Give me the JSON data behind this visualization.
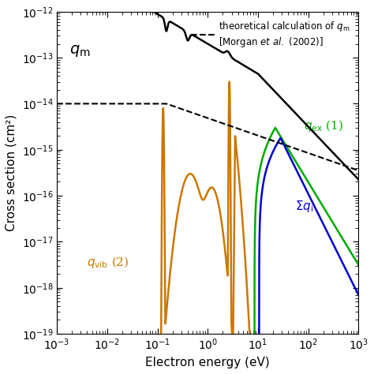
{
  "xlabel": "Electron energy (eV)",
  "ylabel": "Cross section (cm²)",
  "xlim": [
    0.001,
    1000
  ],
  "ylim": [
    1e-19,
    1e-12
  ],
  "background_color": "#ffffff",
  "line_colors": {
    "qm": "#000000",
    "qm_theory": "#000000",
    "qvib": "#cc7700",
    "qex": "#00aa00",
    "qi": "#0000cc"
  },
  "label_qm": "$q_{\\mathrm{m}}$",
  "label_qvib": "$q_{\\mathrm{vib}}$ (2)",
  "label_qex": "$q_{\\mathrm{ex}}$ (1)",
  "label_qi": "$\\Sigma q_{\\mathrm{i}}$"
}
